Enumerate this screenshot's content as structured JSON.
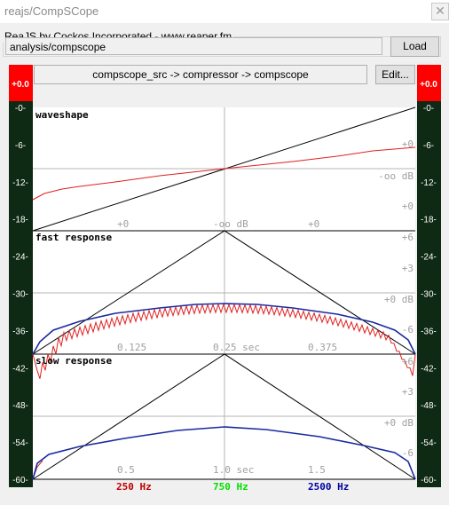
{
  "window": {
    "title": "reajs/CompSCope",
    "close_glyph": "✕"
  },
  "header": {
    "group_label": "ReaJS by Cockos Incorporated - www.reaper.fm",
    "path_value": "analysis/compscope",
    "load_label": "Load"
  },
  "chain": {
    "label": "compscope_src -> compressor -> compscope",
    "edit_label": "Edit..."
  },
  "meters": {
    "left_peak": "+0.0",
    "right_peak": "+0.0",
    "scale": [
      "-0-",
      "-6-",
      "-12-",
      "-18-",
      "-24-",
      "-30-",
      "-36-",
      "-42-",
      "-48-",
      "-54-",
      "-60-"
    ]
  },
  "panels": {
    "waveshape": {
      "title": "waveshape",
      "center_label": "-oo dB",
      "x_labels": [
        "+0",
        "-oo dB",
        "+0"
      ],
      "right_labels": [
        "+0",
        "-oo dB",
        "+0"
      ]
    },
    "fast": {
      "title": "fast response",
      "x_labels": [
        "0.125",
        "0.25 sec",
        "0.375"
      ],
      "right_labels": [
        "+6",
        "+3",
        "+0 dB",
        "-6"
      ]
    },
    "slow": {
      "title": "slow response",
      "x_labels": [
        "0.5",
        "1.0 sec",
        "1.5"
      ],
      "right_labels": [
        "+6",
        "+3",
        "+0 dB",
        "-6"
      ]
    }
  },
  "legend": [
    {
      "label": "250 Hz",
      "color": "#c00000"
    },
    {
      "label": "750 Hz",
      "color": "#00e000"
    },
    {
      "label": "2500 Hz",
      "color": "#0000a0"
    }
  ],
  "colors": {
    "meter_peak": "#ff0000",
    "meter_bg": "#0f2a14",
    "trace_red": "#e02020",
    "trace_blue": "#1a2aa0"
  }
}
